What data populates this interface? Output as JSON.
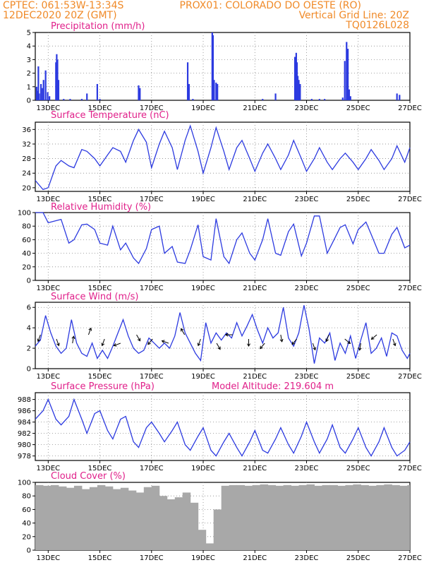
{
  "header": {
    "line1_left": "CPTEC:   061:53W-13:34S",
    "line1_right": "PROX01: COLORADO DO OESTE (RO)",
    "line2_left": "12DEC2020 20Z (GMT)",
    "line2_right": "Vertical Grid Line: 20Z",
    "line3_right": "TQ0126L028"
  },
  "x_axis": {
    "ticks": [
      "13DEC",
      "15DEC",
      "17DEC",
      "19DEC",
      "21DEC",
      "23DEC",
      "25DEC",
      "27DEC"
    ],
    "tick_days": [
      13,
      15,
      17,
      19,
      21,
      23,
      25,
      27
    ],
    "start_day": 12.5,
    "end_day": 27
  },
  "colors": {
    "header": "#f08a28",
    "panel_title": "#e0208a",
    "series": "#2c3ae0",
    "cloud": "#a8a8a8",
    "grid": "#888888"
  },
  "panels": {
    "precip": {
      "title": "Precipitation (mm/h)",
      "yticks": [
        "0",
        "1",
        "2",
        "3",
        "4",
        "5"
      ]
    },
    "temp": {
      "title": "Surface Temperature (nC)",
      "yticks": [
        "20",
        "24",
        "28",
        "32",
        "36"
      ]
    },
    "rh": {
      "title": "Relative Humidity (%)",
      "yticks": [
        "0",
        "20",
        "40",
        "60",
        "80",
        "100"
      ]
    },
    "wind": {
      "title": "Surface Wind (m/s)",
      "yticks": [
        "0",
        "2",
        "4",
        "6"
      ]
    },
    "pressure": {
      "title": "Surface Pressure (hPa)",
      "altitude_label": "Model Altitude: 219.604 m",
      "yticks": [
        "978",
        "980",
        "982",
        "984",
        "986",
        "988"
      ]
    },
    "cloud": {
      "title": "Cloud Cover (%)",
      "yticks": [
        "0",
        "20",
        "40",
        "60",
        "80",
        "100"
      ]
    }
  },
  "chart_data": [
    {
      "type": "bar",
      "title": "Precipitation (mm/h)",
      "ylim": [
        0,
        5
      ],
      "x": [
        12.55,
        12.6,
        12.62,
        12.65,
        12.72,
        12.78,
        12.82,
        12.9,
        12.98,
        13.05,
        13.3,
        13.33,
        13.36,
        13.4,
        13.6,
        13.85,
        14.3,
        14.5,
        14.9,
        15.0,
        16.5,
        16.55,
        18.4,
        18.45,
        18.6,
        19.35,
        19.38,
        19.42,
        19.5,
        19.55,
        21.3,
        21.8,
        22.55,
        22.6,
        22.63,
        22.66,
        22.7,
        22.75,
        23.2,
        23.5,
        23.7,
        24.4,
        24.48,
        24.55,
        24.6,
        24.65,
        24.7,
        26.5,
        26.6
      ],
      "values": [
        1.0,
        0.7,
        2.5,
        0.5,
        1.2,
        0.9,
        1.5,
        2.2,
        0.6,
        0.3,
        2.8,
        3.4,
        3.0,
        1.5,
        0.1,
        0.1,
        0.1,
        0.5,
        1.2,
        0.1,
        1.1,
        0.9,
        2.8,
        1.2,
        0.1,
        5.0,
        4.8,
        1.5,
        1.3,
        1.2,
        0.1,
        0.5,
        3.2,
        3.5,
        2.8,
        1.8,
        1.5,
        1.2,
        0.1,
        0.1,
        0.1,
        0.2,
        2.9,
        4.3,
        3.8,
        0.8,
        0.3,
        0.5,
        0.4
      ]
    },
    {
      "type": "line",
      "title": "Surface Temperature (nC)",
      "ylim": [
        19,
        38
      ],
      "x": [
        12.5,
        12.8,
        13.0,
        13.3,
        13.5,
        13.8,
        14.0,
        14.3,
        14.5,
        14.8,
        15.0,
        15.3,
        15.5,
        15.8,
        16.0,
        16.3,
        16.5,
        16.8,
        17.0,
        17.3,
        17.5,
        17.8,
        18.0,
        18.3,
        18.5,
        18.8,
        19.0,
        19.3,
        19.5,
        19.8,
        20.0,
        20.3,
        20.5,
        20.8,
        21.0,
        21.3,
        21.5,
        21.8,
        22.0,
        22.3,
        22.5,
        22.8,
        23.0,
        23.3,
        23.5,
        23.8,
        24.0,
        24.3,
        24.5,
        24.8,
        25.0,
        25.3,
        25.5,
        25.8,
        26.0,
        26.3,
        26.5,
        26.8,
        27.0
      ],
      "values": [
        22,
        19.5,
        20,
        26,
        27.5,
        26,
        25.5,
        30.5,
        30,
        28,
        26,
        29,
        31,
        30,
        27,
        33,
        36,
        32.5,
        25.5,
        32,
        35.5,
        31,
        25,
        33,
        37,
        30,
        24,
        31,
        36.5,
        30,
        25,
        31,
        33,
        28,
        24.5,
        29.5,
        32,
        28,
        25,
        29,
        33,
        28,
        24.5,
        28,
        31,
        27,
        25,
        28,
        29.5,
        27,
        25,
        28,
        30.5,
        27.5,
        25,
        28,
        31.5,
        27,
        31
      ]
    },
    {
      "type": "line",
      "title": "Relative Humidity (%)",
      "ylim": [
        0,
        100
      ],
      "x": [
        12.5,
        12.8,
        13.0,
        13.3,
        13.5,
        13.8,
        14.0,
        14.3,
        14.5,
        14.8,
        15.0,
        15.3,
        15.5,
        15.8,
        16.0,
        16.3,
        16.5,
        16.8,
        17.0,
        17.3,
        17.5,
        17.8,
        18.0,
        18.3,
        18.5,
        18.8,
        19.0,
        19.3,
        19.5,
        19.8,
        20.0,
        20.3,
        20.5,
        20.8,
        21.0,
        21.3,
        21.5,
        21.8,
        22.0,
        22.3,
        22.5,
        22.8,
        23.0,
        23.3,
        23.5,
        23.8,
        24.0,
        24.3,
        24.5,
        24.8,
        25.0,
        25.3,
        25.5,
        25.8,
        26.0,
        26.3,
        26.5,
        26.8,
        27.0
      ],
      "values": [
        100,
        100,
        85,
        88,
        90,
        55,
        60,
        82,
        83,
        75,
        55,
        52,
        80,
        45,
        55,
        33,
        25,
        47,
        75,
        80,
        40,
        50,
        27,
        25,
        45,
        82,
        35,
        30,
        91,
        35,
        25,
        60,
        70,
        40,
        30,
        60,
        91,
        40,
        37,
        72,
        83,
        36,
        55,
        95,
        95,
        40,
        55,
        78,
        82,
        54,
        75,
        86,
        68,
        40,
        40,
        68,
        78,
        48,
        52
      ]
    },
    {
      "type": "line",
      "title": "Surface Wind (m/s)",
      "ylim": [
        0,
        6.5
      ],
      "x": [
        12.5,
        12.7,
        12.9,
        13.1,
        13.3,
        13.5,
        13.7,
        13.9,
        14.1,
        14.3,
        14.5,
        14.7,
        14.9,
        15.1,
        15.3,
        15.5,
        15.7,
        15.9,
        16.1,
        16.3,
        16.5,
        16.7,
        16.9,
        17.1,
        17.3,
        17.5,
        17.7,
        17.9,
        18.1,
        18.3,
        18.5,
        18.7,
        18.9,
        19.1,
        19.3,
        19.5,
        19.7,
        19.9,
        20.1,
        20.3,
        20.5,
        20.7,
        20.9,
        21.1,
        21.3,
        21.5,
        21.7,
        21.9,
        22.1,
        22.3,
        22.5,
        22.7,
        22.9,
        23.1,
        23.3,
        23.5,
        23.7,
        23.9,
        24.1,
        24.3,
        24.5,
        24.7,
        24.9,
        25.1,
        25.3,
        25.5,
        25.7,
        25.9,
        26.1,
        26.3,
        26.5,
        26.7,
        26.9,
        27.0
      ],
      "values": [
        2.2,
        2.8,
        5.2,
        3.5,
        2.2,
        1.5,
        2.0,
        4.8,
        2.5,
        1.5,
        1.2,
        2.5,
        1.0,
        1.8,
        1.0,
        2.2,
        3.5,
        4.8,
        3.2,
        2.0,
        1.5,
        1.8,
        3.0,
        2.5,
        2.0,
        2.5,
        2.0,
        3.2,
        5.5,
        3.5,
        2.5,
        1.5,
        0.8,
        4.5,
        2.5,
        3.5,
        2.8,
        3.5,
        3.0,
        4.5,
        3.2,
        4.2,
        5.3,
        3.8,
        2.5,
        4.0,
        3.0,
        3.5,
        6.0,
        3.0,
        2.2,
        3.5,
        6.2,
        3.8,
        0.5,
        3.0,
        2.5,
        3.5,
        0.8,
        2.5,
        1.5,
        3.2,
        1.0,
        2.8,
        4.5,
        1.5,
        2.0,
        3.0,
        1.2,
        3.5,
        3.2,
        1.8,
        1.0,
        1.5
      ]
    },
    {
      "type": "line",
      "title": "Surface Pressure (hPa)",
      "ylim": [
        977.2,
        989.2
      ],
      "x": [
        12.5,
        12.8,
        13.0,
        13.3,
        13.5,
        13.8,
        14.0,
        14.3,
        14.5,
        14.8,
        15.0,
        15.3,
        15.5,
        15.8,
        16.0,
        16.3,
        16.5,
        16.8,
        17.0,
        17.3,
        17.5,
        17.8,
        18.0,
        18.3,
        18.5,
        18.8,
        19.0,
        19.3,
        19.5,
        19.8,
        20.0,
        20.3,
        20.5,
        20.8,
        21.0,
        21.3,
        21.5,
        21.8,
        22.0,
        22.3,
        22.5,
        22.8,
        23.0,
        23.3,
        23.5,
        23.8,
        24.0,
        24.3,
        24.5,
        24.8,
        25.0,
        25.3,
        25.5,
        25.8,
        26.0,
        26.3,
        26.5,
        26.8,
        27.0
      ],
      "values": [
        984.5,
        986,
        988,
        984.5,
        983.5,
        985,
        988,
        984.5,
        982,
        985.5,
        986,
        982.5,
        981,
        984.5,
        985,
        980.5,
        979.5,
        983,
        984,
        982,
        980.5,
        982.5,
        984,
        980,
        979,
        981.5,
        983,
        979,
        978,
        980.5,
        982,
        979.5,
        978,
        980.5,
        982.5,
        979,
        978.5,
        981,
        983,
        980,
        978.5,
        981.5,
        984,
        980.5,
        978.5,
        981,
        983.5,
        979.5,
        978.5,
        981,
        983,
        979.5,
        978,
        980.5,
        983,
        979.5,
        978,
        979,
        980.5
      ]
    },
    {
      "type": "bar",
      "title": "Cloud Cover (%)",
      "ylim": [
        0,
        100
      ],
      "x": [
        12.5,
        12.8,
        13.1,
        13.4,
        13.7,
        14.0,
        14.3,
        14.6,
        14.9,
        15.2,
        15.5,
        15.8,
        16.1,
        16.4,
        16.7,
        17.0,
        17.3,
        17.6,
        17.9,
        18.2,
        18.5,
        18.8,
        19.1,
        19.4,
        19.7,
        20.0,
        20.3,
        20.6,
        20.9,
        21.2,
        21.5,
        21.8,
        22.1,
        22.4,
        22.7,
        23.0,
        23.3,
        23.6,
        23.9,
        24.2,
        24.5,
        24.8,
        25.1,
        25.4,
        25.7,
        26.0,
        26.3,
        26.6,
        26.9
      ],
      "values": [
        96,
        95,
        96,
        94,
        92,
        95,
        90,
        93,
        96,
        94,
        90,
        92,
        88,
        85,
        93,
        95,
        80,
        75,
        78,
        85,
        70,
        30,
        10,
        60,
        95,
        96,
        96,
        95,
        96,
        97,
        96,
        95,
        96,
        95,
        96,
        97,
        95,
        96,
        96,
        95,
        96,
        97,
        96,
        95,
        96,
        97,
        96,
        95,
        96
      ]
    }
  ]
}
